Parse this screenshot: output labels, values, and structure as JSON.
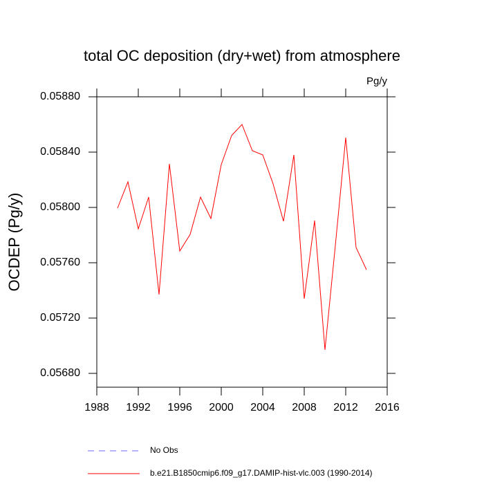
{
  "chart_data": {
    "type": "line",
    "title": "total OC deposition (dry+wet) from atmosphere",
    "units": "Pg/y",
    "y_label": "OCDEP  (Pg/y)",
    "x": [
      1990,
      1991,
      1992,
      1993,
      1994,
      1995,
      1996,
      1997,
      1998,
      1999,
      2000,
      2001,
      2002,
      2003,
      2004,
      2005,
      2006,
      2007,
      2008,
      2009,
      2010,
      2011,
      2012,
      2013,
      2014
    ],
    "series": [
      {
        "name": "No Obs",
        "color": "#6a6aff",
        "dashed": true,
        "values": [
          null,
          null,
          null,
          null,
          null,
          null,
          null,
          null,
          null,
          null,
          null,
          null,
          null,
          null,
          null,
          null,
          null,
          null,
          null,
          null,
          null,
          null,
          null,
          null,
          null
        ]
      },
      {
        "name": "b.e21.B1850cmip6.f09_g17.DAMIP-hist-vlc.003 (1990-2014)",
        "color": "#ff0000",
        "dashed": false,
        "values": [
          0.057995,
          0.058185,
          0.057845,
          0.058075,
          0.05737,
          0.058315,
          0.057685,
          0.057805,
          0.058075,
          0.05792,
          0.05831,
          0.05852,
          0.0586,
          0.05841,
          0.05838,
          0.05817,
          0.0579,
          0.05838,
          0.05734,
          0.057905,
          0.05697,
          0.057725,
          0.058505,
          0.05771,
          0.05755
        ]
      }
    ],
    "xlim": [
      1988,
      2016
    ],
    "xticks": [
      1988,
      1992,
      1996,
      2000,
      2004,
      2008,
      2012,
      2016
    ],
    "ylim": [
      0.0567,
      0.0588
    ],
    "yticks": [
      {
        "value": 0.0568,
        "label": "0.05680"
      },
      {
        "value": 0.0572,
        "label": "0.05720"
      },
      {
        "value": 0.0576,
        "label": "0.05760"
      },
      {
        "value": 0.058,
        "label": "0.05800"
      },
      {
        "value": 0.0584,
        "label": "0.05840"
      },
      {
        "value": 0.0588,
        "label": "0.05880"
      }
    ]
  }
}
